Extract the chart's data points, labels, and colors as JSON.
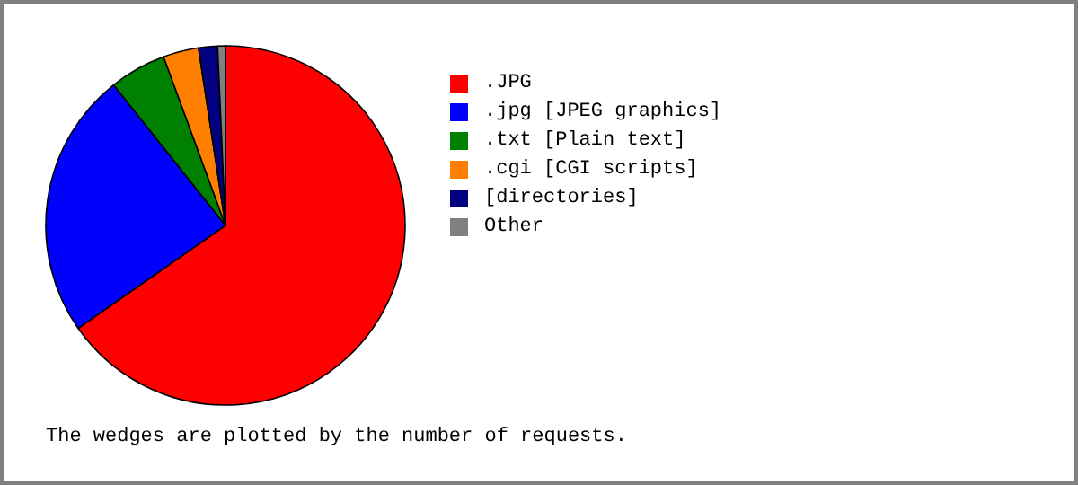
{
  "chart_data": {
    "type": "pie",
    "categories": [
      ".JPG",
      ".jpg  [JPEG graphics]",
      ".txt  [Plain text]",
      ".cgi  [CGI scripts]",
      "[directories]",
      "Other"
    ],
    "values": [
      65.3,
      24.0,
      5.1,
      3.2,
      1.7,
      0.7
    ],
    "colors": [
      "#ff0000",
      "#0000ff",
      "#008000",
      "#ff8000",
      "#000080",
      "#808080"
    ],
    "legend": "right",
    "annotations": [
      "The wedges are plotted by the number of requests."
    ]
  }
}
